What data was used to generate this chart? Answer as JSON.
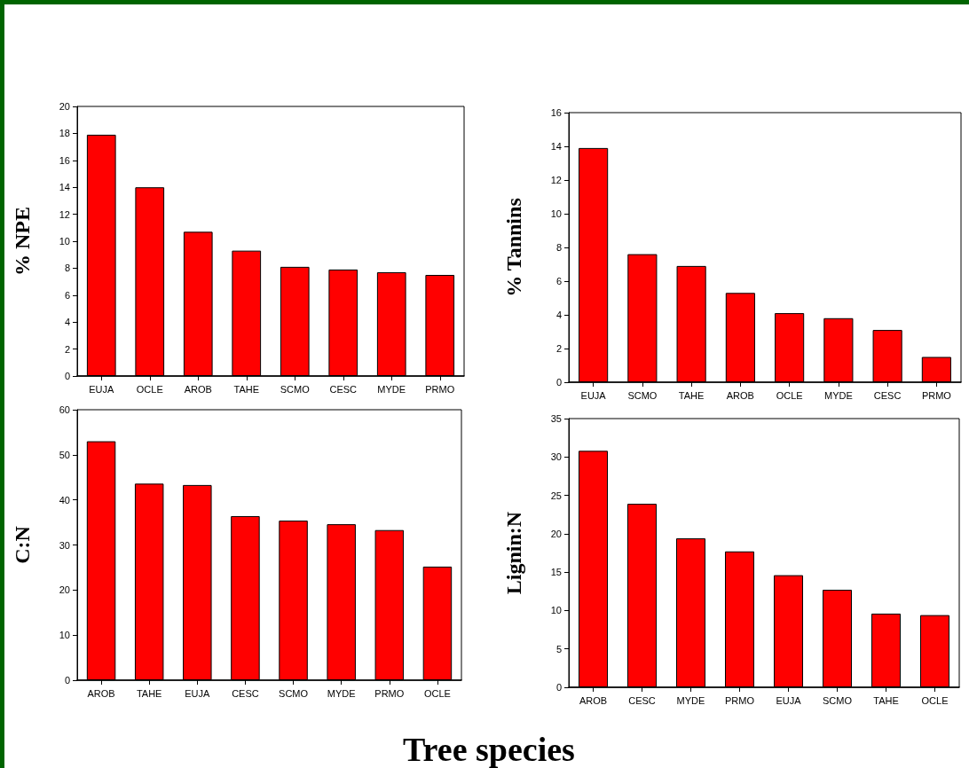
{
  "chart_data": [
    {
      "type": "bar",
      "ylabel": "% NPE",
      "categories": [
        "EUJA",
        "OCLE",
        "AROB",
        "TAHE",
        "SCMO",
        "CESC",
        "MYDE",
        "PRMO"
      ],
      "values": [
        17.9,
        14,
        10.7,
        9.3,
        8.1,
        7.9,
        7.7,
        7.5
      ],
      "color": "#ff0000",
      "ylim": [
        0,
        20
      ],
      "yticks": [
        0,
        2,
        4,
        6,
        8,
        10,
        12,
        14,
        16,
        18,
        20
      ]
    },
    {
      "type": "bar",
      "ylabel": "% Tannins",
      "categories": [
        "EUJA",
        "SCMO",
        "TAHE",
        "AROB",
        "OCLE",
        "MYDE",
        "CESC",
        "PRMO"
      ],
      "values": [
        13.9,
        7.6,
        6.9,
        5.3,
        4.1,
        3.8,
        3.1,
        1.5
      ],
      "color": "#ff0000",
      "ylim": [
        0,
        16
      ],
      "yticks": [
        0,
        2,
        4,
        6,
        8,
        10,
        12,
        14,
        16
      ]
    },
    {
      "type": "bar",
      "ylabel": "C:N",
      "categories": [
        "AROB",
        "TAHE",
        "EUJA",
        "CESC",
        "SCMO",
        "MYDE",
        "PRMO",
        "OCLE"
      ],
      "values": [
        53,
        43.6,
        43.3,
        36.4,
        35.4,
        34.6,
        33.3,
        25.2
      ],
      "color": "#ff0000",
      "ylim": [
        0,
        60
      ],
      "yticks": [
        0,
        10,
        20,
        30,
        40,
        50,
        60
      ]
    },
    {
      "type": "bar",
      "ylabel": "Lignin:N",
      "xlabel": "Tree species",
      "categories": [
        "AROB",
        "CESC",
        "MYDE",
        "PRMO",
        "EUJA",
        "SCMO",
        "TAHE",
        "OCLE"
      ],
      "values": [
        30.8,
        23.9,
        19.4,
        17.7,
        14.6,
        12.7,
        9.6,
        9.4
      ],
      "color": "#ff0000",
      "ylim": [
        0,
        35
      ],
      "yticks": [
        0,
        5,
        10,
        15,
        20,
        25,
        30,
        35
      ]
    }
  ]
}
